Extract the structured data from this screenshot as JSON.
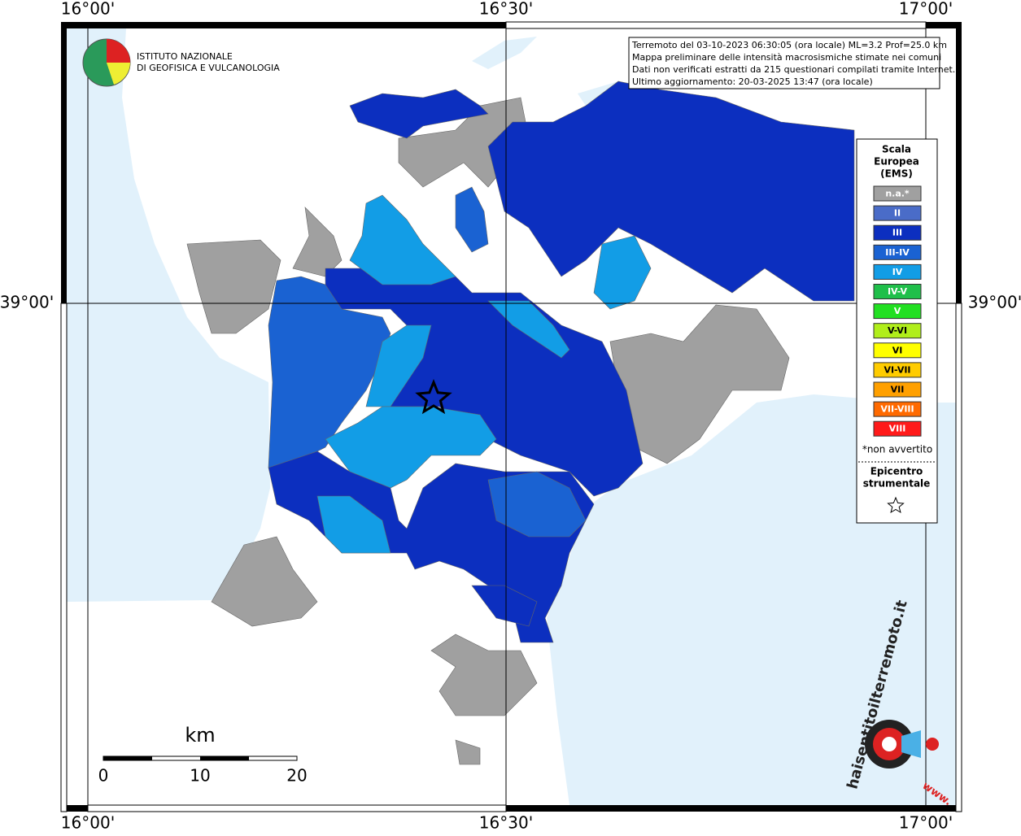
{
  "map": {
    "lon_labels": [
      "16°00'",
      "16°30'",
      "17°00'"
    ],
    "lat_labels": [
      "39°00'"
    ],
    "info": [
      "Terremoto del 03-10-2023 06:30:05 (ora locale) ML=3.2 Prof=25.0 km",
      "Mappa preliminare delle intensità macrosismiche stimate nei comuni",
      "Dati non verificati estratti da 215 questionari compilati tramite Internet.",
      "Ultimo aggiornamento: 20-03-2025 13:47 (ora locale)"
    ],
    "institute": [
      "ISTITUTO NAZIONALE",
      "DI GEOFISICA E VULCANOLOGIA"
    ],
    "legend": {
      "title": [
        "Scala",
        "Europea",
        "(EMS)"
      ],
      "items": [
        {
          "label": "n.a.*",
          "color": "#a0a0a0"
        },
        {
          "label": "II",
          "color": "#4a6cc8"
        },
        {
          "label": "III",
          "color": "#0c2fbf"
        },
        {
          "label": "III-IV",
          "color": "#1a62d2"
        },
        {
          "label": "IV",
          "color": "#129de6"
        },
        {
          "label": "IV-V",
          "color": "#1fbf4a"
        },
        {
          "label": "V",
          "color": "#22e022"
        },
        {
          "label": "V-VI",
          "color": "#b0ee1a"
        },
        {
          "label": "VI",
          "color": "#ffff00"
        },
        {
          "label": "VI-VII",
          "color": "#ffcc00"
        },
        {
          "label": "VII",
          "color": "#ffa000"
        },
        {
          "label": "VII-VIII",
          "color": "#ff6a00"
        },
        {
          "label": "VIII",
          "color": "#ff1a1a"
        }
      ],
      "note": "*non avvertito",
      "epicenter": [
        "Epicentro",
        "strumentale"
      ]
    },
    "scale": {
      "unit": "km",
      "labels": [
        "0",
        "10",
        "20"
      ]
    },
    "site": "haisentitoilterremoto.it",
    "site_www": "www."
  }
}
